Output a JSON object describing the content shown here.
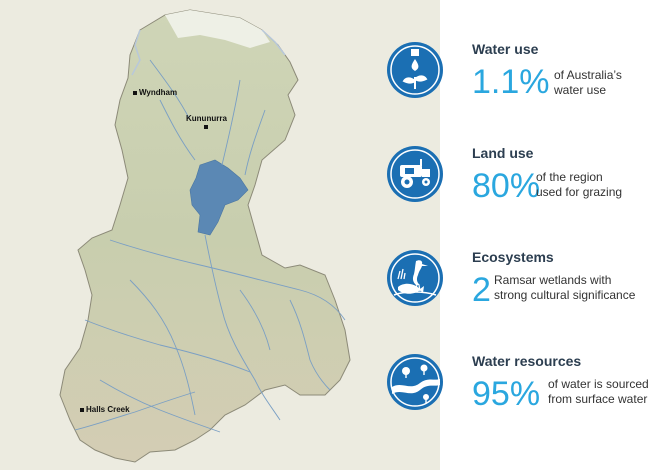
{
  "map": {
    "towns": [
      {
        "name": "Wyndham"
      },
      {
        "name": "Kununurra"
      },
      {
        "name": "Halls Creek"
      }
    ]
  },
  "stats": [
    {
      "title": "Water use",
      "value": "1.1%",
      "desc_line1": "of Australia’s",
      "desc_line2": "water use",
      "icon": "water-tap-plant-icon"
    },
    {
      "title": "Land use",
      "value": "80%",
      "desc_line1": "of the region",
      "desc_line2": "used for grazing",
      "icon": "tractor-icon"
    },
    {
      "title": "Ecosystems",
      "value": "2",
      "desc_line1": "Ramsar wetlands with",
      "desc_line2": "strong cultural significance",
      "icon": "heron-fish-icon"
    },
    {
      "title": "Water resources",
      "value": "95%",
      "desc_line1": "of water is sourced",
      "desc_line2": "from surface water",
      "icon": "river-trees-icon"
    }
  ],
  "colors": {
    "accent": "#2aa7df",
    "icon_blue": "#1b6fb3",
    "title": "#2c3e50",
    "land": "#c9ceaf",
    "water": "#5b88b4"
  }
}
